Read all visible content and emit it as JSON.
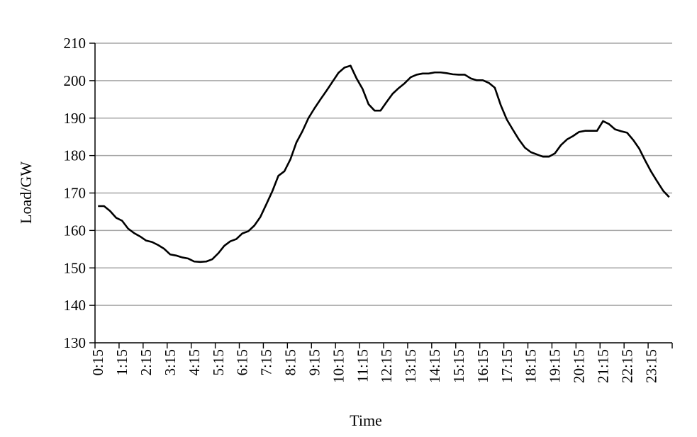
{
  "chart_data": {
    "type": "line",
    "title": "",
    "xlabel": "Time",
    "ylabel": "Load/GW",
    "ylim": [
      130,
      210
    ],
    "yticks": [
      130,
      140,
      150,
      160,
      170,
      180,
      190,
      200,
      210
    ],
    "grid": "horizontal",
    "legend": "none",
    "line_color": "#000000",
    "grid_color": "#a6a6a6",
    "x_tick_labels": [
      "0:15",
      "1:15",
      "2:15",
      "3:15",
      "4:15",
      "5:15",
      "6:15",
      "7:15",
      "8:15",
      "9:15",
      "10:15",
      "11:15",
      "12:15",
      "13:15",
      "14:15",
      "15:15",
      "16:15",
      "17:15",
      "18:15",
      "19:15",
      "20:15",
      "21:15",
      "22:15",
      "23:15"
    ],
    "x": [
      "0:15",
      "0:30",
      "0:45",
      "1:00",
      "1:15",
      "1:30",
      "1:45",
      "2:00",
      "2:15",
      "2:30",
      "2:45",
      "3:00",
      "3:15",
      "3:30",
      "3:45",
      "4:00",
      "4:15",
      "4:30",
      "4:45",
      "5:00",
      "5:15",
      "5:30",
      "5:45",
      "6:00",
      "6:15",
      "6:30",
      "6:45",
      "7:00",
      "7:15",
      "7:30",
      "7:45",
      "8:00",
      "8:15",
      "8:30",
      "8:45",
      "9:00",
      "9:15",
      "9:30",
      "9:45",
      "10:00",
      "10:15",
      "10:30",
      "10:45",
      "11:00",
      "11:15",
      "11:30",
      "11:45",
      "12:00",
      "12:15",
      "12:30",
      "12:45",
      "13:00",
      "13:15",
      "13:30",
      "13:45",
      "14:00",
      "14:15",
      "14:30",
      "14:45",
      "15:00",
      "15:15",
      "15:30",
      "15:45",
      "16:00",
      "16:15",
      "16:30",
      "16:45",
      "17:00",
      "17:15",
      "17:30",
      "17:45",
      "18:00",
      "18:15",
      "18:30",
      "18:45",
      "19:00",
      "19:15",
      "19:30",
      "19:45",
      "20:00",
      "20:15",
      "20:30",
      "20:45",
      "21:00",
      "21:15",
      "21:30",
      "21:45",
      "22:00",
      "22:15",
      "22:30",
      "22:45",
      "23:00",
      "23:15",
      "23:30",
      "23:45",
      "24:00"
    ],
    "series": [
      {
        "values": [
          166.5,
          166.5,
          165.2,
          163.4,
          162.6,
          160.5,
          159.3,
          158.4,
          157.3,
          156.9,
          156.1,
          155.1,
          153.6,
          153.3,
          152.8,
          152.5,
          151.7,
          151.6,
          151.7,
          152.3,
          153.9,
          155.9,
          157.1,
          157.7,
          159.2,
          159.8,
          161.3,
          163.6,
          167.0,
          170.5,
          174.6,
          175.8,
          179.0,
          183.5,
          186.5,
          190.0,
          192.6,
          195.0,
          197.3,
          199.7,
          202.1,
          203.5,
          204.0,
          200.6,
          197.8,
          193.7,
          192.0,
          192.0,
          194.3,
          196.5,
          198.0,
          199.3,
          200.9,
          201.6,
          201.9,
          201.9,
          202.2,
          202.2,
          202.0,
          201.7,
          201.6,
          201.6,
          200.6,
          200.1,
          200.1,
          199.4,
          198.1,
          193.4,
          189.6,
          186.9,
          184.3,
          182.1,
          180.9,
          180.3,
          179.7,
          179.7,
          180.6,
          182.8,
          184.3,
          185.2,
          186.3,
          186.6,
          186.6,
          186.6,
          189.2,
          188.4,
          187.0,
          186.5,
          186.1,
          184.2,
          181.9,
          178.7,
          175.7,
          173.1,
          170.6,
          168.9
        ]
      }
    ]
  }
}
